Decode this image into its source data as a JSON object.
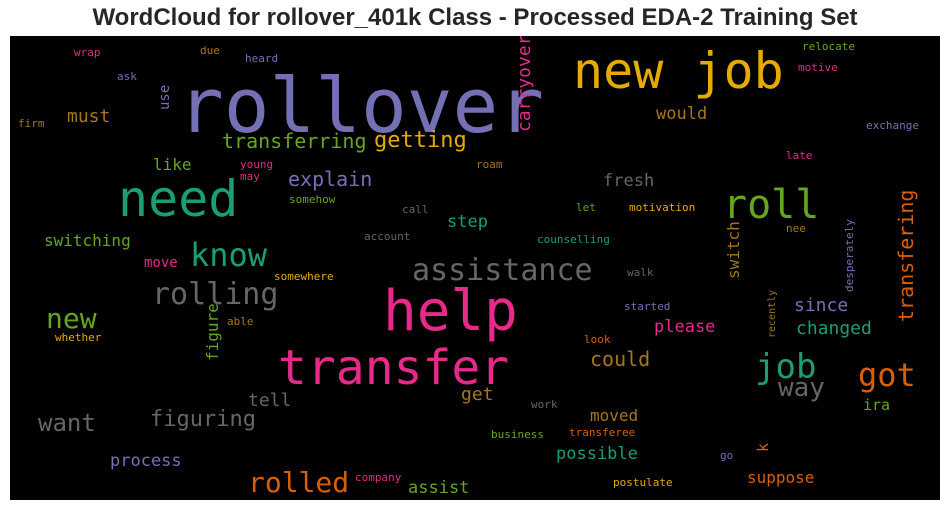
{
  "chart_data": {
    "type": "wordcloud",
    "title": "WordCloud for rollover_401k Class - Processed EDA-2 Training Set",
    "background": "#000000",
    "colormap": "Dark2",
    "words": [
      {
        "text": "rollover",
        "color": "#7570b3"
      },
      {
        "text": "new job",
        "color": "#e6ab02"
      },
      {
        "text": "need",
        "color": "#1b9e77"
      },
      {
        "text": "help",
        "color": "#e7298a"
      },
      {
        "text": "transfer",
        "color": "#e7298a"
      },
      {
        "text": "roll",
        "color": "#66a61e"
      },
      {
        "text": "know",
        "color": "#1b9e77"
      },
      {
        "text": "assistance",
        "color": "#666666"
      },
      {
        "text": "rolling",
        "color": "#666666"
      },
      {
        "text": "job",
        "color": "#1b9e77"
      },
      {
        "text": "got",
        "color": "#d95f02"
      },
      {
        "text": "new",
        "color": "#66a61e"
      },
      {
        "text": "rolled",
        "color": "#d95f02"
      },
      {
        "text": "way",
        "color": "#666666"
      },
      {
        "text": "want",
        "color": "#666666"
      },
      {
        "text": "getting",
        "color": "#e6ab02"
      },
      {
        "text": "transferring",
        "color": "#66a61e"
      },
      {
        "text": "explain",
        "color": "#7570b3"
      },
      {
        "text": "figuring",
        "color": "#666666"
      },
      {
        "text": "transfering",
        "color": "#d95f02"
      },
      {
        "text": "carryover",
        "color": "#e7298a"
      },
      {
        "text": "must",
        "color": "#a6761d"
      },
      {
        "text": "would",
        "color": "#a6761d"
      },
      {
        "text": "fresh",
        "color": "#666666"
      },
      {
        "text": "step",
        "color": "#1b9e77"
      },
      {
        "text": "switching",
        "color": "#66a61e"
      },
      {
        "text": "like",
        "color": "#66a61e"
      },
      {
        "text": "could",
        "color": "#a6761d"
      },
      {
        "text": "changed",
        "color": "#1b9e77"
      },
      {
        "text": "please",
        "color": "#e7298a"
      },
      {
        "text": "since",
        "color": "#7570b3"
      },
      {
        "text": "switch",
        "color": "#a6761d"
      },
      {
        "text": "possible",
        "color": "#1b9e77"
      },
      {
        "text": "process",
        "color": "#7570b3"
      },
      {
        "text": "assist",
        "color": "#66a61e"
      },
      {
        "text": "suppose",
        "color": "#d95f02"
      },
      {
        "text": "moved",
        "color": "#a6761d"
      },
      {
        "text": "get",
        "color": "#a6761d"
      },
      {
        "text": "tell",
        "color": "#666666"
      },
      {
        "text": "ira",
        "color": "#66a61e"
      },
      {
        "text": "move",
        "color": "#e7298a"
      },
      {
        "text": "figure",
        "color": "#66a61e"
      },
      {
        "text": "use",
        "color": "#7570b3"
      },
      {
        "text": "k",
        "color": "#d95f02"
      },
      {
        "text": "desperately",
        "color": "#7570b3"
      },
      {
        "text": "recently",
        "color": "#a6761d"
      },
      {
        "text": "wrap",
        "color": "#e7298a"
      },
      {
        "text": "due",
        "color": "#a6761d"
      },
      {
        "text": "heard",
        "color": "#7570b3"
      },
      {
        "text": "ask",
        "color": "#7570b3"
      },
      {
        "text": "firm",
        "color": "#a6761d"
      },
      {
        "text": "relocate",
        "color": "#66a61e"
      },
      {
        "text": "motive",
        "color": "#e7298a"
      },
      {
        "text": "exchange",
        "color": "#7570b3"
      },
      {
        "text": "late",
        "color": "#e7298a"
      },
      {
        "text": "young",
        "color": "#e7298a"
      },
      {
        "text": "may",
        "color": "#e7298a"
      },
      {
        "text": "roam",
        "color": "#a6761d"
      },
      {
        "text": "somehow",
        "color": "#66a61e"
      },
      {
        "text": "call",
        "color": "#666666"
      },
      {
        "text": "let",
        "color": "#66a61e"
      },
      {
        "text": "motivation",
        "color": "#e6ab02"
      },
      {
        "text": "account",
        "color": "#666666"
      },
      {
        "text": "counselling",
        "color": "#1b9e77"
      },
      {
        "text": "nee",
        "color": "#a6761d"
      },
      {
        "text": "somewhere",
        "color": "#e6ab02"
      },
      {
        "text": "walk",
        "color": "#666666"
      },
      {
        "text": "able",
        "color": "#a6761d"
      },
      {
        "text": "whether",
        "color": "#e6ab02"
      },
      {
        "text": "started",
        "color": "#7570b3"
      },
      {
        "text": "look",
        "color": "#d95f02"
      },
      {
        "text": "work",
        "color": "#666666"
      },
      {
        "text": "business",
        "color": "#66a61e"
      },
      {
        "text": "transferee",
        "color": "#d95f02"
      },
      {
        "text": "go",
        "color": "#7570b3"
      },
      {
        "text": "company",
        "color": "#e7298a"
      },
      {
        "text": "postulate",
        "color": "#e6ab02"
      }
    ]
  }
}
